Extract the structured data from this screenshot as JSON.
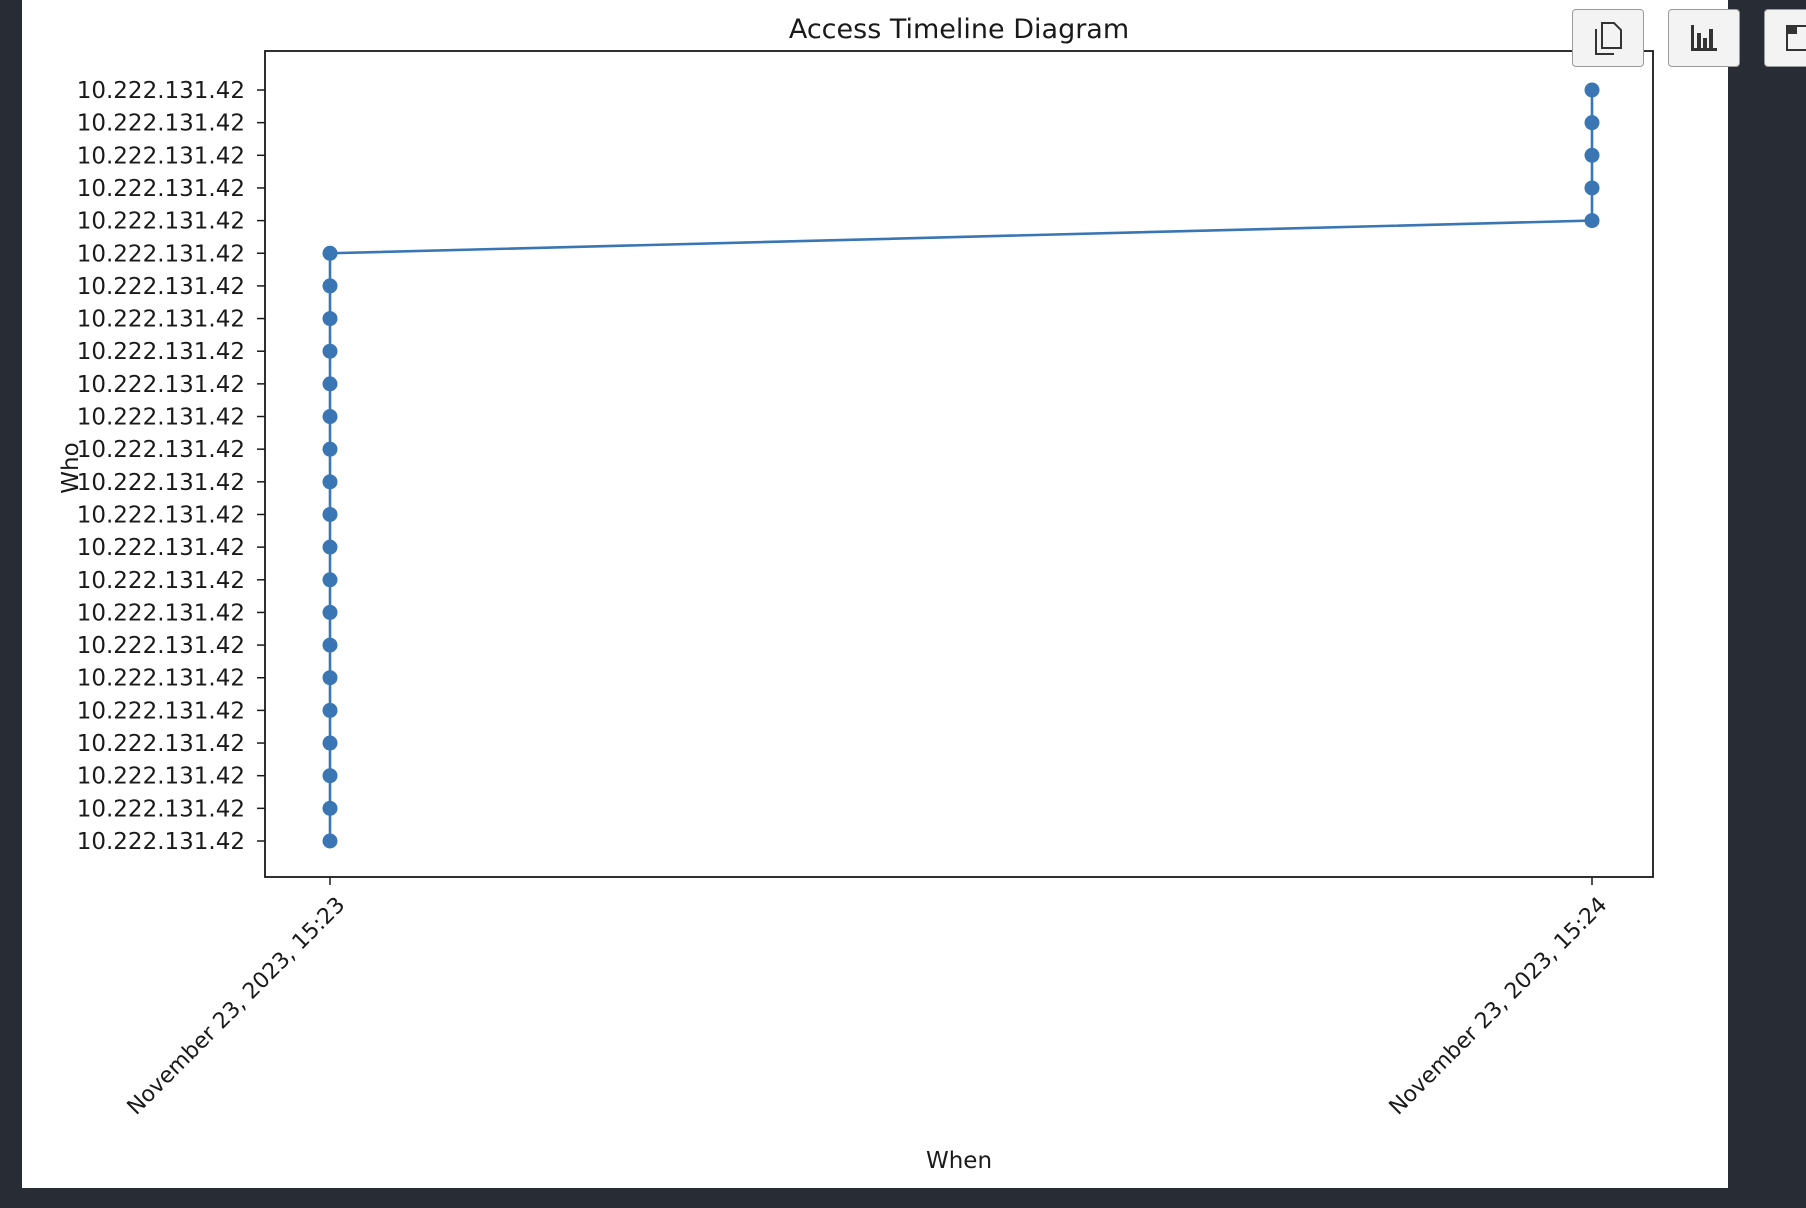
{
  "toolbar": {
    "buttons": [
      {
        "name": "copy-button",
        "icon": "copy-icon"
      },
      {
        "name": "bar-chart-button",
        "icon": "bar-chart-icon"
      },
      {
        "name": "window-button",
        "icon": "window-icon"
      }
    ]
  },
  "colors": {
    "series": "#3a76b4",
    "axis": "#1a1a1a",
    "background": "#282c34"
  },
  "chart_data": {
    "type": "line",
    "title": "Access Timeline Diagram",
    "xlabel": "When",
    "ylabel": "Who",
    "grid": false,
    "x_ticks": [
      "November 23, 2023, 15:23",
      "November 23, 2023, 15:24"
    ],
    "y_ticks": [
      "10.222.131.42",
      "10.222.131.42",
      "10.222.131.42",
      "10.222.131.42",
      "10.222.131.42",
      "10.222.131.42",
      "10.222.131.42",
      "10.222.131.42",
      "10.222.131.42",
      "10.222.131.42",
      "10.222.131.42",
      "10.222.131.42",
      "10.222.131.42",
      "10.222.131.42",
      "10.222.131.42",
      "10.222.131.42",
      "10.222.131.42",
      "10.222.131.42",
      "10.222.131.42",
      "10.222.131.42",
      "10.222.131.42",
      "10.222.131.42",
      "10.222.131.42",
      "10.222.131.42"
    ],
    "series": [
      {
        "x": [
          "November 23, 2023, 15:23",
          "November 23, 2023, 15:23",
          "November 23, 2023, 15:23",
          "November 23, 2023, 15:23",
          "November 23, 2023, 15:23",
          "November 23, 2023, 15:23",
          "November 23, 2023, 15:23",
          "November 23, 2023, 15:23",
          "November 23, 2023, 15:23",
          "November 23, 2023, 15:23",
          "November 23, 2023, 15:23",
          "November 23, 2023, 15:23",
          "November 23, 2023, 15:23",
          "November 23, 2023, 15:23",
          "November 23, 2023, 15:23",
          "November 23, 2023, 15:23",
          "November 23, 2023, 15:23",
          "November 23, 2023, 15:23",
          "November 23, 2023, 15:23",
          "November 23, 2023, 15:24",
          "November 23, 2023, 15:24",
          "November 23, 2023, 15:24",
          "November 23, 2023, 15:24",
          "November 23, 2023, 15:24"
        ],
        "y": [
          "10.222.131.42",
          "10.222.131.42",
          "10.222.131.42",
          "10.222.131.42",
          "10.222.131.42",
          "10.222.131.42",
          "10.222.131.42",
          "10.222.131.42",
          "10.222.131.42",
          "10.222.131.42",
          "10.222.131.42",
          "10.222.131.42",
          "10.222.131.42",
          "10.222.131.42",
          "10.222.131.42",
          "10.222.131.42",
          "10.222.131.42",
          "10.222.131.42",
          "10.222.131.42",
          "10.222.131.42",
          "10.222.131.42",
          "10.222.131.42",
          "10.222.131.42",
          "10.222.131.42"
        ],
        "marker": "o"
      }
    ]
  }
}
